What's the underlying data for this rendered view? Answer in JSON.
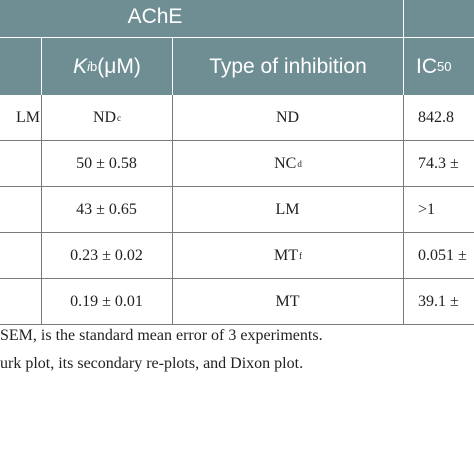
{
  "header_top": {
    "enzyme_label": "AChE"
  },
  "header_columns": {
    "ki_symbol": "K",
    "ki_subscript": "i",
    "ki_superscript": "b",
    "ki_unit": " (μM)",
    "type_label": "Type of inhibition",
    "ic_symbol": "IC",
    "ic_subscript": "50"
  },
  "rows": [
    {
      "name_fragment": "LM",
      "ki": "ND",
      "ki_note": "c",
      "type": "ND",
      "type_note": "",
      "ic50": "842.8"
    },
    {
      "name_fragment": "",
      "ki": "50 ± 0.58",
      "ki_note": "",
      "type": "NC",
      "type_note": "d",
      "ic50": "74.3 ±"
    },
    {
      "name_fragment": "",
      "ki": "43 ± 0.65",
      "ki_note": "",
      "type": "LM",
      "type_note": "",
      "ic50": ">1"
    },
    {
      "name_fragment": "",
      "ki": "0.23 ± 0.02",
      "ki_note": "",
      "type": "MT",
      "type_note": "f",
      "ic50": "0.051 ±"
    },
    {
      "name_fragment": "",
      "ki": "0.19 ± 0.01",
      "ki_note": "",
      "type": "MT",
      "type_note": "",
      "ic50": "39.1 ±"
    }
  ],
  "footnotes": [
    "SEM, is the standard mean error of 3 experiments.",
    "urk plot, its secondary re-plots, and Dixon plot."
  ],
  "colors": {
    "header_bg": "#6f8e94",
    "header_text": "#ffffff",
    "grid_line": "#7a7a7a",
    "body_text": "#222222"
  }
}
